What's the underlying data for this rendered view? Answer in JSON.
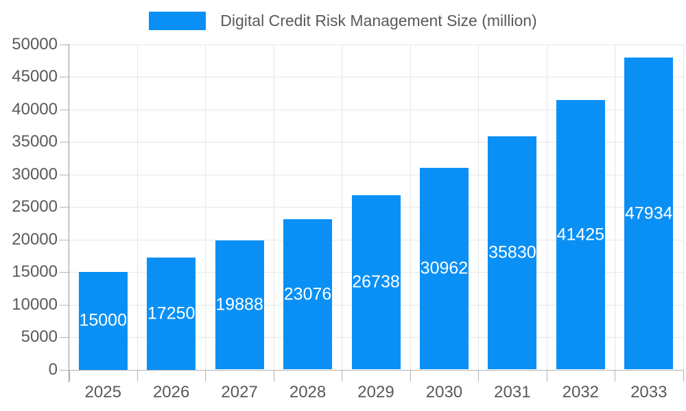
{
  "legend": {
    "label": "Digital Credit Risk Management Size (million)"
  },
  "chart_data": {
    "type": "bar",
    "title": "Digital Credit Risk Management Size (million)",
    "series_name": "Digital Credit Risk Management Size (million)",
    "categories": [
      "2025",
      "2026",
      "2027",
      "2028",
      "2029",
      "2030",
      "2031",
      "2032",
      "2033"
    ],
    "values": [
      15000,
      17250,
      19888,
      23076,
      26738,
      30962,
      35830,
      41425,
      47934
    ],
    "value_labels": [
      "15000",
      "17250",
      "19888",
      "23076",
      "26738",
      "30962",
      "35830",
      "41425",
      "47934"
    ],
    "xlabel": "",
    "ylabel": "",
    "ylim": [
      0,
      50000
    ],
    "ytick_step": 5000,
    "ytick_labels": [
      "0",
      "5000",
      "10000",
      "15000",
      "20000",
      "25000",
      "30000",
      "35000",
      "40000",
      "45000",
      "50000"
    ],
    "grid": true,
    "legend_position": "top-center",
    "bar_color": "#0a90f5",
    "value_label_color": "#ffffff"
  },
  "colors": {
    "background": "#ffffff",
    "bar": "#0a90f5",
    "grid": "#e6e6e6",
    "y_axis_line": "#999999",
    "x_axis_line": "#b3b3b3",
    "tick": "#b3b3b3",
    "label_text": "#595959",
    "bar_label_text": "#ffffff"
  }
}
